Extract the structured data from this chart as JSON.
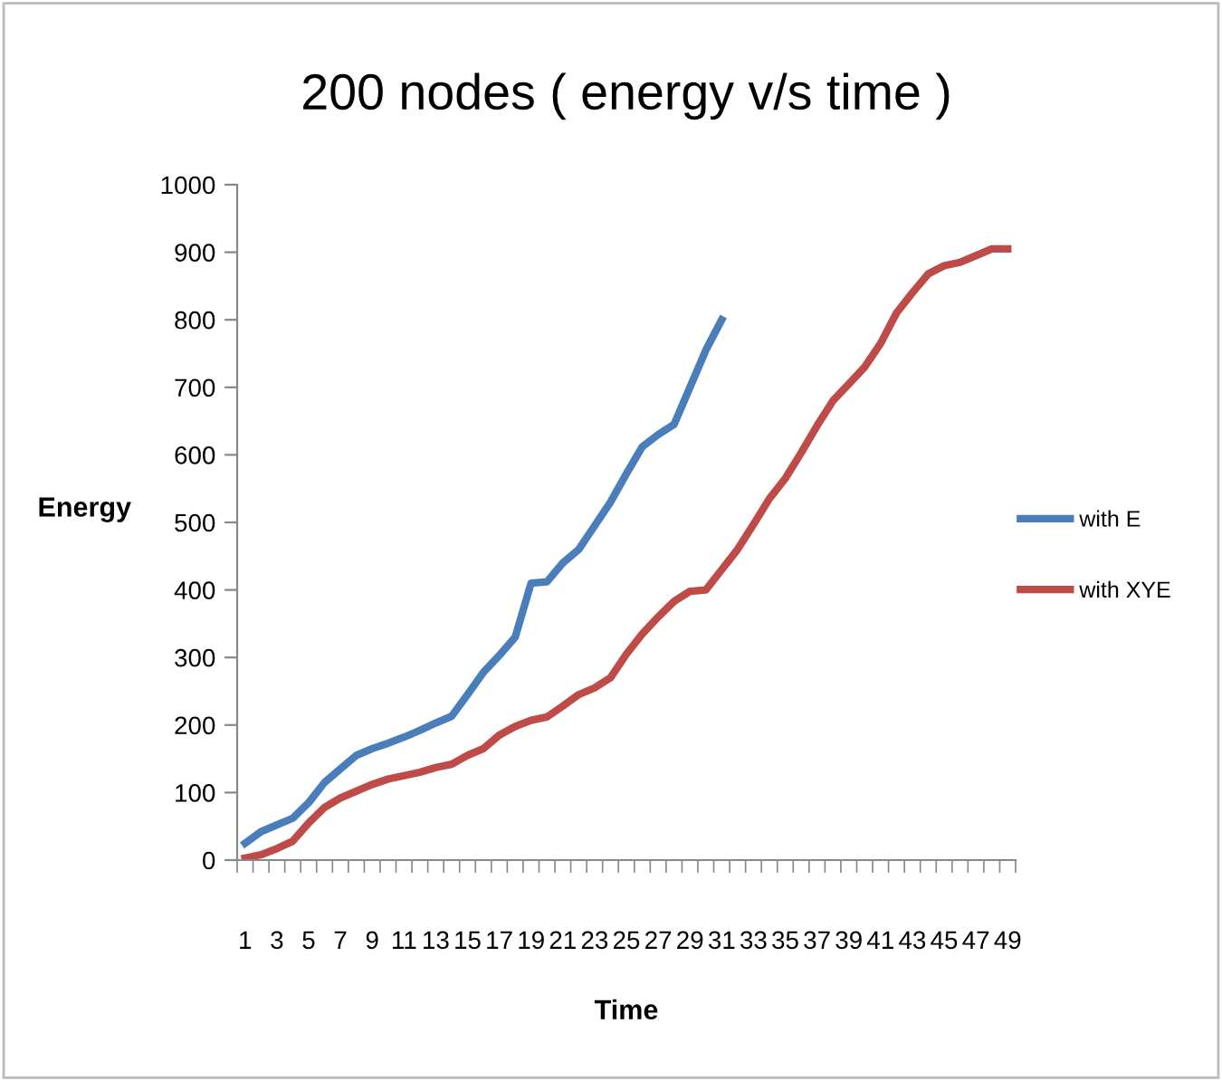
{
  "chart_data": {
    "type": "line",
    "title": "200 nodes ( energy v/s time )",
    "xlabel": "Time",
    "ylabel": "Energy",
    "categories": [
      "1",
      null,
      "3",
      null,
      "5",
      null,
      "7",
      null,
      "9",
      null,
      "11",
      null,
      "13",
      null,
      "15",
      null,
      "17",
      null,
      "19",
      null,
      "21",
      null,
      "23",
      null,
      "25",
      null,
      "27",
      null,
      "29",
      null,
      "31",
      null,
      "33",
      null,
      "35",
      null,
      "37",
      null,
      "39",
      null,
      "41",
      null,
      "43",
      null,
      "45",
      null,
      "47",
      null,
      "49"
    ],
    "series": [
      {
        "name": "with E",
        "color": "#4a7ebb",
        "values": [
          25,
          42,
          52,
          62,
          85,
          115,
          135,
          155,
          165,
          173,
          182,
          192,
          203,
          213,
          245,
          278,
          303,
          330,
          410,
          412,
          440,
          460,
          495,
          530,
          572,
          612,
          630,
          645,
          700,
          755,
          800,
          null,
          null,
          null,
          null,
          null,
          null,
          null,
          null,
          null,
          null,
          null,
          null,
          null,
          null,
          null,
          null,
          null,
          null
        ]
      },
      {
        "name": "with XYE",
        "color": "#be4b48",
        "values": [
          3,
          8,
          17,
          28,
          55,
          78,
          92,
          102,
          112,
          120,
          125,
          130,
          137,
          142,
          155,
          165,
          185,
          198,
          207,
          212,
          228,
          245,
          255,
          270,
          305,
          335,
          360,
          383,
          398,
          400,
          430,
          460,
          497,
          535,
          565,
          603,
          643,
          680,
          705,
          730,
          765,
          810,
          840,
          868,
          880,
          885,
          895,
          905,
          905
        ]
      }
    ],
    "ylim": [
      0,
      1000
    ],
    "yticks": [
      0,
      100,
      200,
      300,
      400,
      500,
      600,
      700,
      800,
      900,
      1000
    ],
    "grid": false,
    "legend": "right",
    "marker": "none",
    "line_style": "solid"
  }
}
